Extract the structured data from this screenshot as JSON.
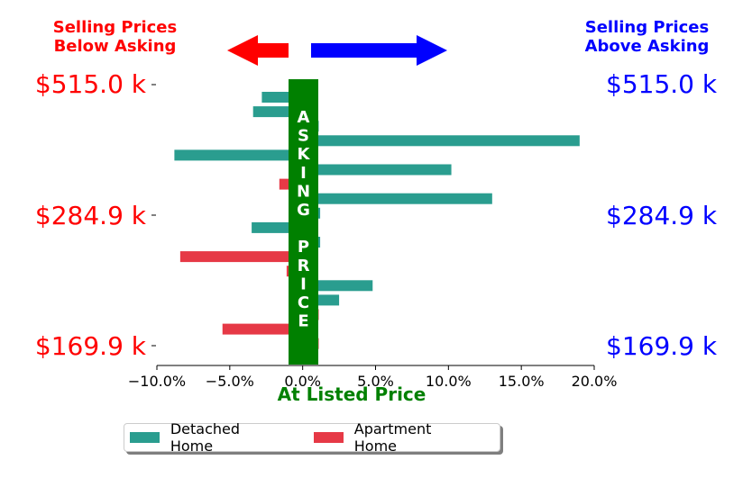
{
  "header": {
    "left_line1": "Selling Prices",
    "left_line2": "Below Asking",
    "right_line1": "Selling Prices",
    "right_line2": "Above Asking"
  },
  "price_labels": [
    "$515.0 k",
    "$284.9 k",
    "$169.9 k"
  ],
  "center_label_letters": [
    "A",
    "S",
    "K",
    "I",
    "N",
    "G",
    "",
    "P",
    "R",
    "I",
    "C",
    "E"
  ],
  "legend": {
    "detached": "Detached Home",
    "apartment": "Apartment Home"
  },
  "colors": {
    "detached": "#2a9d8f",
    "apartment": "#e63946",
    "asking_band": "#008000",
    "arrow_left": "#ff0000",
    "arrow_right": "#0000ff",
    "below_text": "#ff0000",
    "above_text": "#0000ff"
  },
  "chart_data": {
    "type": "bar",
    "orientation": "horizontal",
    "xlabel": "At Listed Price",
    "xlim": [
      -0.1,
      0.2
    ],
    "xticks": [
      -0.1,
      -0.05,
      0.0,
      0.05,
      0.1,
      0.15,
      0.2
    ],
    "xtick_labels": [
      "−10.0%",
      "−5.0%",
      "0.0%",
      "5.0%",
      "10.0%",
      "15.0%",
      "20.0%"
    ],
    "yticks": [
      "$515.0 k",
      "$284.9 k",
      "$169.9 k"
    ],
    "series": [
      {
        "name": "Detached Home",
        "color": "#2a9d8f",
        "values": [
          -0.028,
          -0.034,
          0.011,
          0.19,
          -0.088,
          0.102,
          0.13,
          0.012,
          -0.035,
          0.012,
          0.048,
          0.025
        ]
      },
      {
        "name": "Apartment Home",
        "color": "#e63946",
        "values": [
          -0.016,
          -0.084,
          -0.011,
          0.011,
          -0.055,
          0.011
        ]
      }
    ],
    "bars": [
      {
        "series": "Detached Home",
        "value": -0.028,
        "row": 0
      },
      {
        "series": "Detached Home",
        "value": -0.034,
        "row": 1
      },
      {
        "series": "Detached Home",
        "value": 0.011,
        "row": 2
      },
      {
        "series": "Detached Home",
        "value": 0.19,
        "row": 3
      },
      {
        "series": "Detached Home",
        "value": -0.088,
        "row": 4
      },
      {
        "series": "Detached Home",
        "value": 0.102,
        "row": 5
      },
      {
        "series": "Apartment Home",
        "value": -0.016,
        "row": 6
      },
      {
        "series": "Detached Home",
        "value": 0.13,
        "row": 7
      },
      {
        "series": "Detached Home",
        "value": 0.012,
        "row": 8
      },
      {
        "series": "Detached Home",
        "value": -0.035,
        "row": 9
      },
      {
        "series": "Detached Home",
        "value": 0.012,
        "row": 10
      },
      {
        "series": "Apartment Home",
        "value": -0.084,
        "row": 11
      },
      {
        "series": "Apartment Home",
        "value": -0.011,
        "row": 12
      },
      {
        "series": "Detached Home",
        "value": 0.048,
        "row": 13
      },
      {
        "series": "Detached Home",
        "value": 0.025,
        "row": 14
      },
      {
        "series": "Apartment Home",
        "value": 0.011,
        "row": 15
      },
      {
        "series": "Apartment Home",
        "value": -0.055,
        "row": 16
      },
      {
        "series": "Apartment Home",
        "value": 0.011,
        "row": 17
      }
    ],
    "legend_position": "bottom",
    "grid": false
  }
}
